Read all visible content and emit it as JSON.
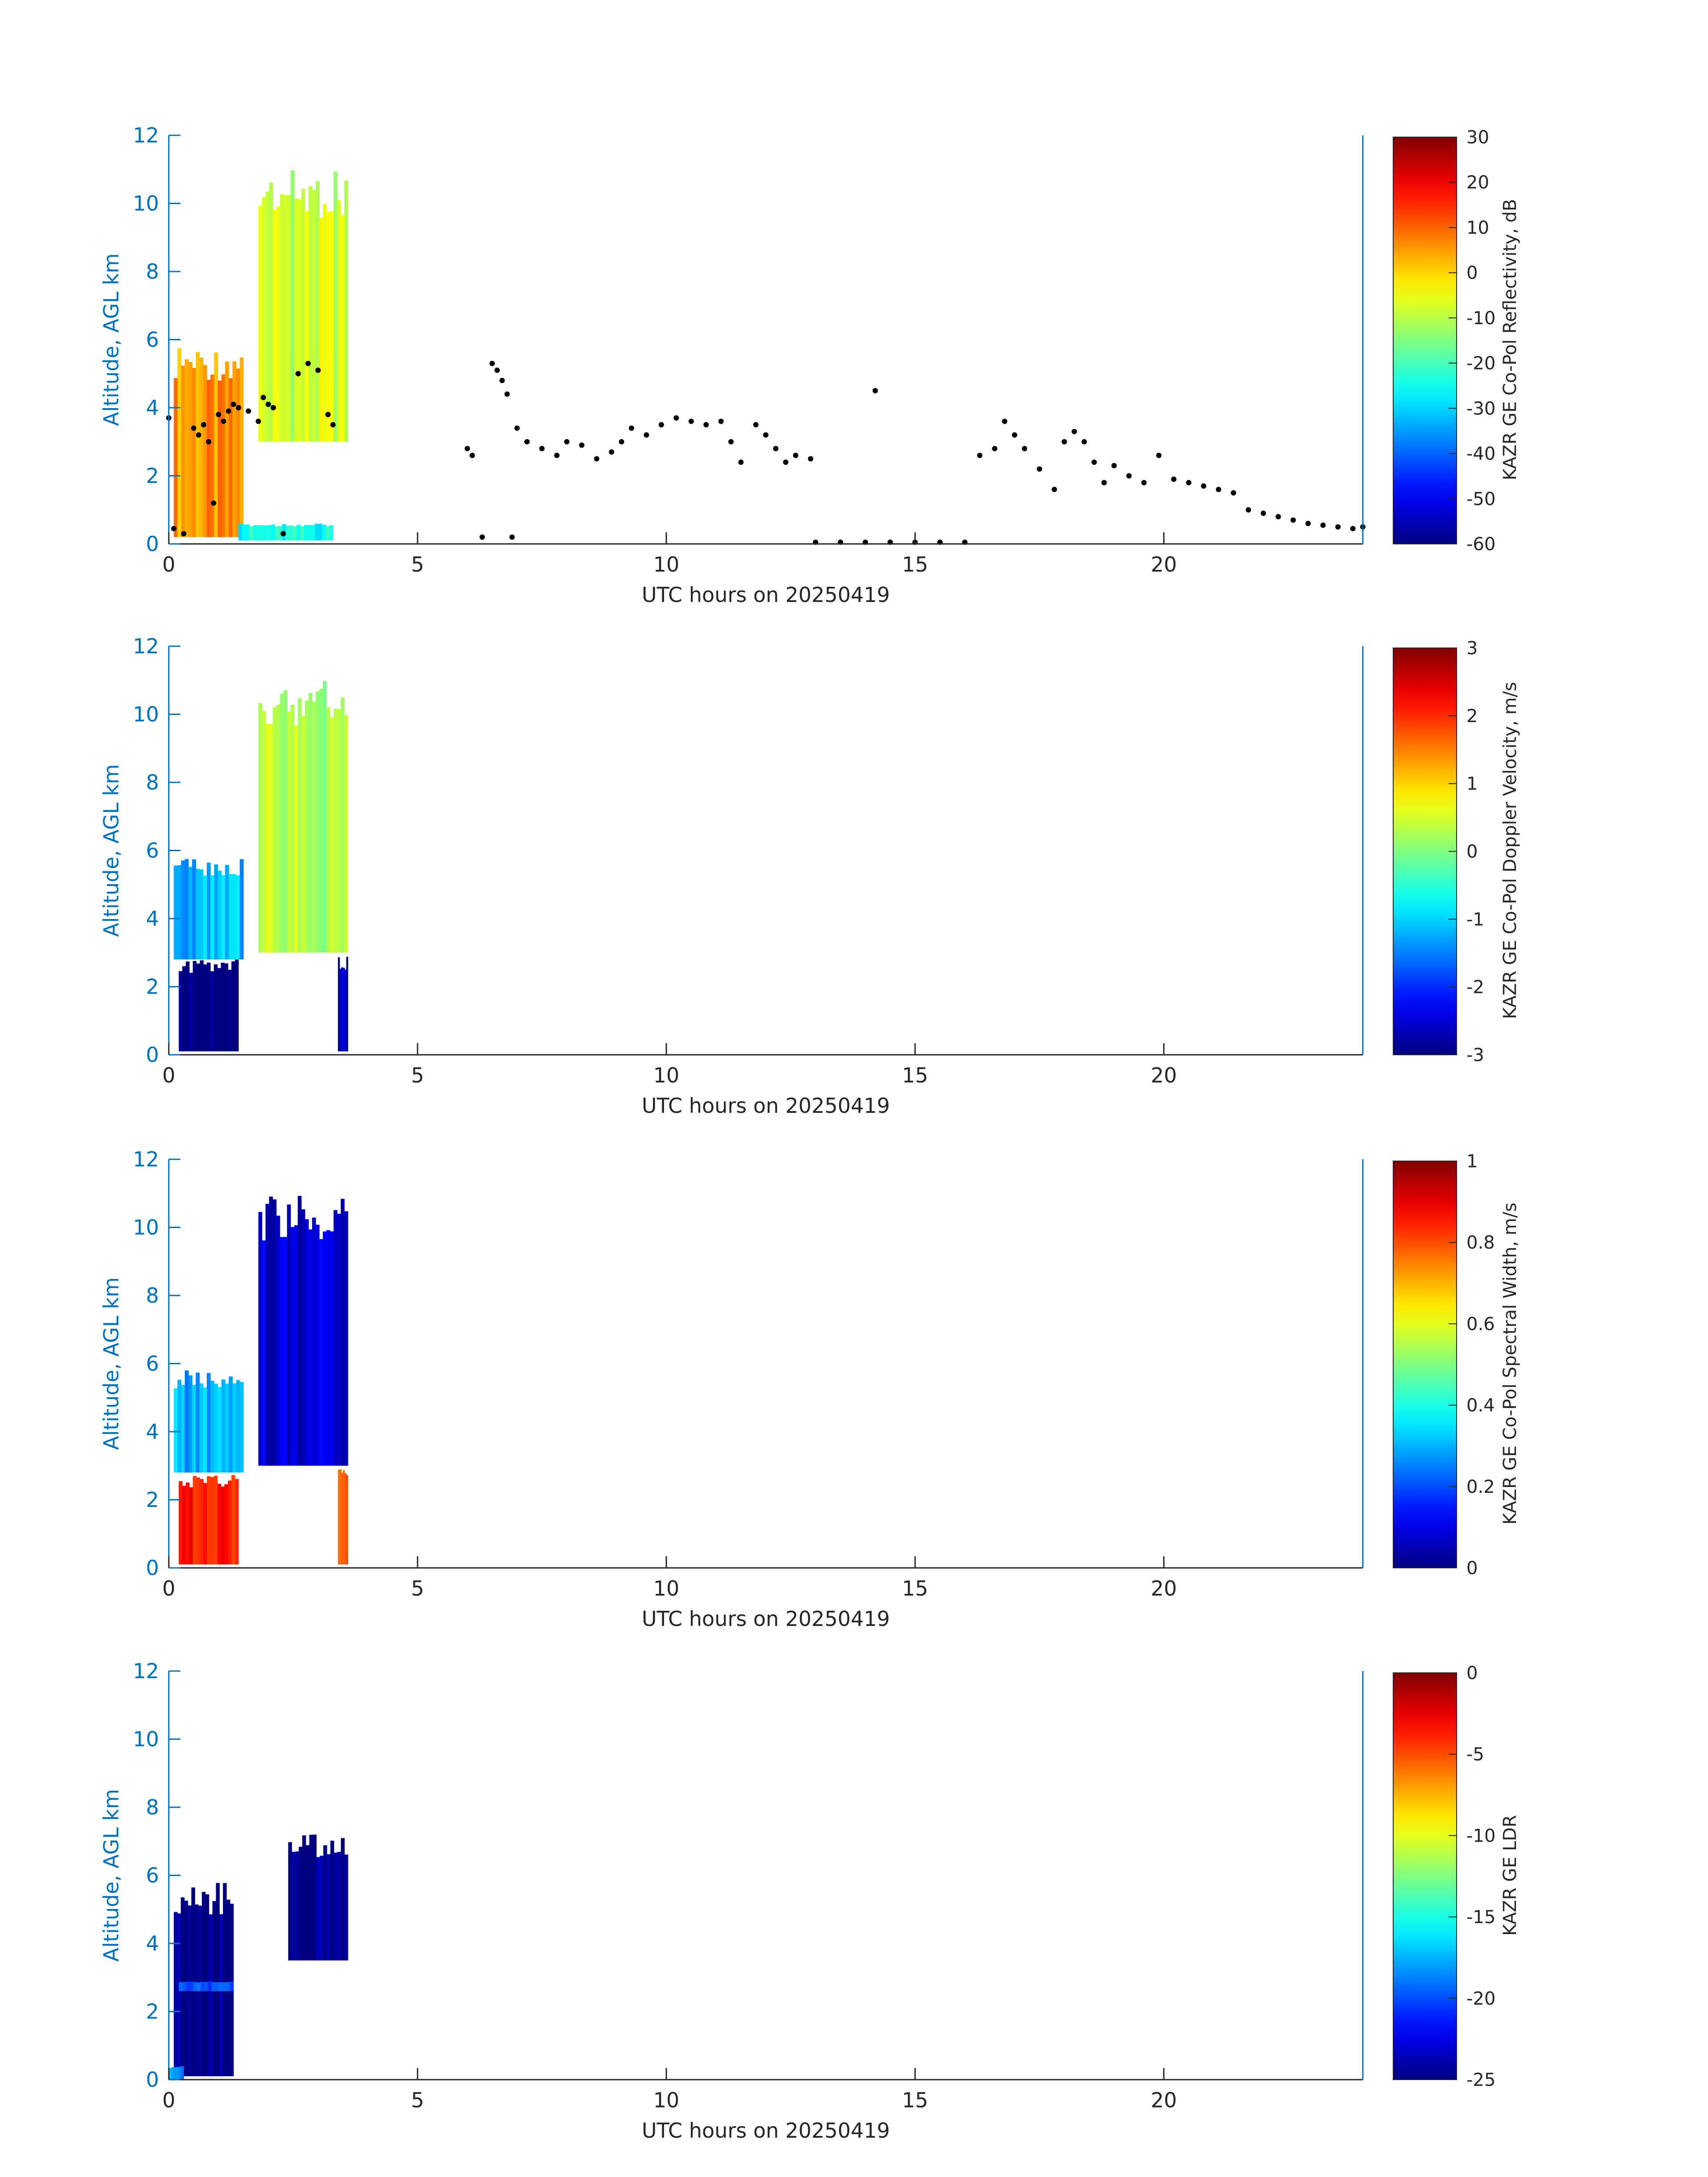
{
  "figure": {
    "panels": [
      {
        "ylabel": "Altitude, AGL km",
        "xlabel": "UTC hours on 20250419",
        "colorbar_label": "KAZR GE Co-Pol Reflectivity, dB",
        "colorbar_ticks": [
          "30",
          "20",
          "10",
          "0",
          "-10",
          "-20",
          "-30",
          "-40",
          "-50",
          "-60"
        ],
        "xticks": [
          "0",
          "5",
          "10",
          "15",
          "20"
        ],
        "yticks": [
          "0",
          "2",
          "4",
          "6",
          "8",
          "10",
          "12"
        ]
      },
      {
        "ylabel": "Altitude, AGL km",
        "xlabel": "UTC hours on 20250419",
        "colorbar_label": "KAZR GE Co-Pol Doppler Velocity, m/s",
        "colorbar_ticks": [
          "3",
          "2",
          "1",
          "0",
          "-1",
          "-2",
          "-3"
        ],
        "xticks": [
          "0",
          "5",
          "10",
          "15",
          "20"
        ],
        "yticks": [
          "0",
          "2",
          "4",
          "6",
          "8",
          "10",
          "12"
        ]
      },
      {
        "ylabel": "Altitude, AGL km",
        "xlabel": "UTC hours on 20250419",
        "colorbar_label": "KAZR GE Co-Pol Spectral Width, m/s",
        "colorbar_ticks": [
          "1",
          "0.8",
          "0.6",
          "0.4",
          "0.2",
          "0"
        ],
        "xticks": [
          "0",
          "5",
          "10",
          "15",
          "20"
        ],
        "yticks": [
          "0",
          "2",
          "4",
          "6",
          "8",
          "10",
          "12"
        ]
      },
      {
        "ylabel": "Altitude, AGL km",
        "xlabel": "UTC hours on 20250419",
        "colorbar_label": "KAZR GE LDR",
        "colorbar_ticks": [
          "0",
          "-5",
          "-10",
          "-15",
          "-20",
          "-25"
        ],
        "xticks": [
          "0",
          "5",
          "10",
          "15",
          "20"
        ],
        "yticks": [
          "0",
          "2",
          "4",
          "6",
          "8",
          "10",
          "12"
        ]
      }
    ]
  },
  "chart_data": [
    {
      "type": "heatmap",
      "title": "",
      "xlabel": "UTC hours on 20250419",
      "ylabel": "Altitude, AGL km",
      "xlim": [
        0,
        24
      ],
      "ylim": [
        0,
        12
      ],
      "colorbar": {
        "label": "KAZR GE Co-Pol Reflectivity, dB",
        "range": [
          -60,
          30
        ],
        "colormap": "jet"
      },
      "regions": [
        {
          "name": "low cloud",
          "x": [
            0.1,
            1.5
          ],
          "y": [
            0.2,
            5.8
          ],
          "value": 5
        },
        {
          "name": "upper cloud",
          "x": [
            1.8,
            3.6
          ],
          "y": [
            3.0,
            11.0
          ],
          "value": -8
        },
        {
          "name": "boundary layer echo",
          "x": [
            1.4,
            3.3
          ],
          "y": [
            0.1,
            0.6
          ],
          "value": -25
        }
      ],
      "overlay_series": {
        "name": "",
        "type": "scatter",
        "color": "#000000",
        "points": [
          [
            0.0,
            3.7
          ],
          [
            0.1,
            0.45
          ],
          [
            0.3,
            0.3
          ],
          [
            0.5,
            3.4
          ],
          [
            0.6,
            3.2
          ],
          [
            0.7,
            3.5
          ],
          [
            0.8,
            3.0
          ],
          [
            0.9,
            1.2
          ],
          [
            1.0,
            3.8
          ],
          [
            1.1,
            3.6
          ],
          [
            1.2,
            3.9
          ],
          [
            1.3,
            4.1
          ],
          [
            1.4,
            4.0
          ],
          [
            1.6,
            3.9
          ],
          [
            1.8,
            3.6
          ],
          [
            1.9,
            4.3
          ],
          [
            2.0,
            4.1
          ],
          [
            2.1,
            4.0
          ],
          [
            2.3,
            0.3
          ],
          [
            2.6,
            5.0
          ],
          [
            2.8,
            5.3
          ],
          [
            3.0,
            5.1
          ],
          [
            3.2,
            3.8
          ],
          [
            3.3,
            3.5
          ],
          [
            6.0,
            2.8
          ],
          [
            6.1,
            2.6
          ],
          [
            6.3,
            0.2
          ],
          [
            6.5,
            5.3
          ],
          [
            6.6,
            5.1
          ],
          [
            6.7,
            4.8
          ],
          [
            6.8,
            4.4
          ],
          [
            6.9,
            0.2
          ],
          [
            7.0,
            3.4
          ],
          [
            7.2,
            3.0
          ],
          [
            7.5,
            2.8
          ],
          [
            7.8,
            2.6
          ],
          [
            8.0,
            3.0
          ],
          [
            8.3,
            2.9
          ],
          [
            8.6,
            2.5
          ],
          [
            8.9,
            2.7
          ],
          [
            9.1,
            3.0
          ],
          [
            9.3,
            3.4
          ],
          [
            9.6,
            3.2
          ],
          [
            9.9,
            3.5
          ],
          [
            10.2,
            3.7
          ],
          [
            10.5,
            3.6
          ],
          [
            10.8,
            3.5
          ],
          [
            11.1,
            3.6
          ],
          [
            11.3,
            3.0
          ],
          [
            11.5,
            2.4
          ],
          [
            11.8,
            3.5
          ],
          [
            12.0,
            3.2
          ],
          [
            12.2,
            2.8
          ],
          [
            12.4,
            2.4
          ],
          [
            12.6,
            2.6
          ],
          [
            12.9,
            2.5
          ],
          [
            13.0,
            0.05
          ],
          [
            13.5,
            0.05
          ],
          [
            14.0,
            0.05
          ],
          [
            14.2,
            4.5
          ],
          [
            14.5,
            0.05
          ],
          [
            15.0,
            0.05
          ],
          [
            15.5,
            0.05
          ],
          [
            16.0,
            0.05
          ],
          [
            16.3,
            2.6
          ],
          [
            16.6,
            2.8
          ],
          [
            16.8,
            3.6
          ],
          [
            17.0,
            3.2
          ],
          [
            17.2,
            2.8
          ],
          [
            17.5,
            2.2
          ],
          [
            17.8,
            1.6
          ],
          [
            18.0,
            3.0
          ],
          [
            18.2,
            3.3
          ],
          [
            18.4,
            3.0
          ],
          [
            18.6,
            2.4
          ],
          [
            18.8,
            1.8
          ],
          [
            19.0,
            2.3
          ],
          [
            19.3,
            2.0
          ],
          [
            19.6,
            1.8
          ],
          [
            19.9,
            2.6
          ],
          [
            20.2,
            1.9
          ],
          [
            20.5,
            1.8
          ],
          [
            20.8,
            1.7
          ],
          [
            21.1,
            1.6
          ],
          [
            21.4,
            1.5
          ],
          [
            21.7,
            1.0
          ],
          [
            22.0,
            0.9
          ],
          [
            22.3,
            0.8
          ],
          [
            22.6,
            0.7
          ],
          [
            22.9,
            0.6
          ],
          [
            23.2,
            0.55
          ],
          [
            23.5,
            0.5
          ],
          [
            23.8,
            0.45
          ],
          [
            24.0,
            0.5
          ]
        ]
      }
    },
    {
      "type": "heatmap",
      "title": "",
      "xlabel": "UTC hours on 20250419",
      "ylabel": "Altitude, AGL km",
      "xlim": [
        0,
        24
      ],
      "ylim": [
        0,
        12
      ],
      "colorbar": {
        "label": "KAZR GE Co-Pol Doppler Velocity, m/s",
        "range": [
          -3,
          3
        ],
        "colormap": "jet"
      },
      "regions": [
        {
          "name": "low cloud upper part",
          "x": [
            0.1,
            1.5
          ],
          "y": [
            2.8,
            5.8
          ],
          "value": -1.2
        },
        {
          "name": "low cloud lower part",
          "x": [
            0.2,
            1.4
          ],
          "y": [
            0.1,
            2.8
          ],
          "value": -3.0
        },
        {
          "name": "upper cloud",
          "x": [
            1.8,
            3.6
          ],
          "y": [
            3.0,
            11.0
          ],
          "value": 0.3
        },
        {
          "name": "edge",
          "x": [
            3.4,
            3.6
          ],
          "y": [
            0.1,
            3.0
          ],
          "value": -2.8
        }
      ]
    },
    {
      "type": "heatmap",
      "title": "",
      "xlabel": "UTC hours on 20250419",
      "ylabel": "Altitude, AGL km",
      "xlim": [
        0,
        24
      ],
      "ylim": [
        0,
        12
      ],
      "colorbar": {
        "label": "KAZR GE Co-Pol Spectral Width, m/s",
        "range": [
          0,
          1
        ],
        "colormap": "jet"
      },
      "regions": [
        {
          "name": "low cloud upper part",
          "x": [
            0.1,
            1.5
          ],
          "y": [
            2.8,
            5.8
          ],
          "value": 0.3
        },
        {
          "name": "low cloud lower part",
          "x": [
            0.2,
            1.4
          ],
          "y": [
            0.1,
            2.8
          ],
          "value": 0.85
        },
        {
          "name": "upper cloud",
          "x": [
            1.8,
            3.6
          ],
          "y": [
            3.0,
            11.0
          ],
          "value": 0.08
        },
        {
          "name": "edge",
          "x": [
            3.4,
            3.6
          ],
          "y": [
            0.1,
            3.0
          ],
          "value": 0.8
        }
      ]
    },
    {
      "type": "heatmap",
      "title": "",
      "xlabel": "UTC hours on 20250419",
      "ylabel": "Altitude, AGL km",
      "xlim": [
        0,
        24
      ],
      "ylim": [
        0,
        12
      ],
      "colorbar": {
        "label": "KAZR GE LDR",
        "range": [
          -25,
          0
        ],
        "colormap": "jet"
      },
      "regions": [
        {
          "name": "low cloud",
          "x": [
            0.1,
            1.3
          ],
          "y": [
            0.1,
            5.8
          ],
          "value": -25
        },
        {
          "name": "melting layer",
          "x": [
            0.2,
            1.3
          ],
          "y": [
            2.6,
            2.9
          ],
          "value": -20
        },
        {
          "name": "upper fragments",
          "x": [
            2.4,
            3.6
          ],
          "y": [
            3.5,
            7.2
          ],
          "value": -25
        },
        {
          "name": "boundary layer",
          "x": [
            0.0,
            0.3
          ],
          "y": [
            0.0,
            0.4
          ],
          "value": -18
        }
      ]
    }
  ]
}
